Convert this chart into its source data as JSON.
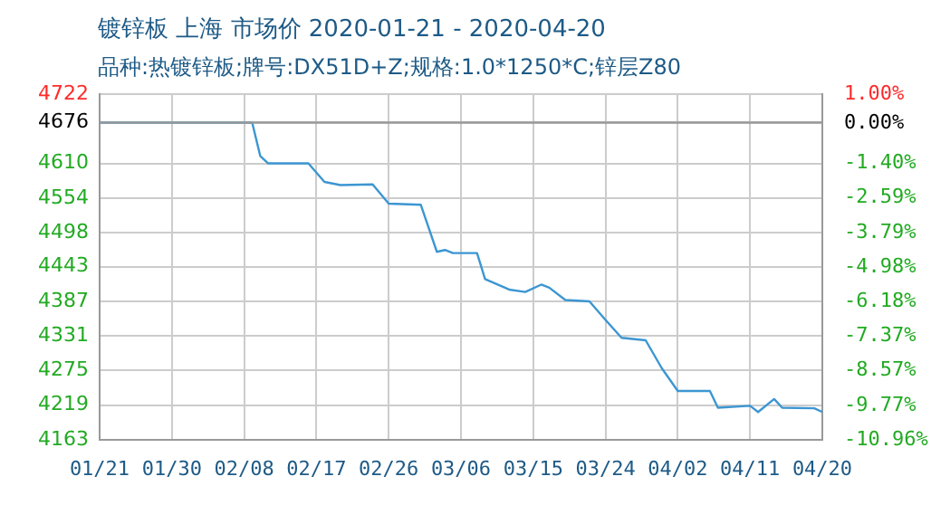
{
  "chart_data": {
    "type": "line",
    "title": "镀锌板 上海 市场价 2020-01-21 - 2020-04-20",
    "subtitle": "品种:热镀锌板;牌号:DX51D+Z;规格:1.0*1250*C;锌层Z80",
    "x": [
      "2020-01-21",
      "2020-02-09",
      "2020-02-10",
      "2020-02-11",
      "2020-02-16",
      "2020-02-18",
      "2020-02-20",
      "2020-02-24",
      "2020-02-26",
      "2020-03-01",
      "2020-03-03",
      "2020-03-04",
      "2020-03-05",
      "2020-03-08",
      "2020-03-09",
      "2020-03-12",
      "2020-03-14",
      "2020-03-16",
      "2020-03-17",
      "2020-03-19",
      "2020-03-22",
      "2020-03-24",
      "2020-03-26",
      "2020-03-29",
      "2020-03-31",
      "2020-04-02",
      "2020-04-06",
      "2020-04-07",
      "2020-04-11",
      "2020-04-12",
      "2020-04-14",
      "2020-04-15",
      "2020-04-19",
      "2020-04-20"
    ],
    "series": [
      {
        "color": "#3c96d2",
        "values": [
          4676,
          4676,
          4622,
          4610,
          4610,
          4580,
          4575,
          4576,
          4545,
          4543,
          4467,
          4470,
          4465,
          4465,
          4423,
          4406,
          4402,
          4414,
          4409,
          4389,
          4387,
          4357,
          4328,
          4324,
          4279,
          4242,
          4242,
          4215,
          4218,
          4208,
          4229,
          4215,
          4214,
          4208
        ]
      }
    ],
    "xlim": [
      "2020-01-21",
      "2020-04-20"
    ],
    "xticks": [
      {
        "value": "2020-01-21",
        "label": "01/21"
      },
      {
        "value": "2020-01-30",
        "label": "01/30"
      },
      {
        "value": "2020-02-08",
        "label": "02/08"
      },
      {
        "value": "2020-02-17",
        "label": "02/17"
      },
      {
        "value": "2020-02-26",
        "label": "02/26"
      },
      {
        "value": "2020-03-06",
        "label": "03/06"
      },
      {
        "value": "2020-03-15",
        "label": "03/15"
      },
      {
        "value": "2020-03-24",
        "label": "03/24"
      },
      {
        "value": "2020-04-02",
        "label": "04/02"
      },
      {
        "value": "2020-04-11",
        "label": "04/11"
      },
      {
        "value": "2020-04-20",
        "label": "04/20"
      }
    ],
    "ylim": [
      4163,
      4722
    ],
    "yticks": [
      4722,
      4676,
      4610,
      4554,
      4498,
      4443,
      4387,
      4331,
      4275,
      4219,
      4163
    ],
    "y2lim": [
      -10.96,
      1.0
    ],
    "y2ticks": [
      {
        "value": 1.0,
        "label": "1.00%"
      },
      {
        "value": 0,
        "label": "0.00%"
      },
      {
        "value": -1.4,
        "label": "-1.40%"
      },
      {
        "value": -2.59,
        "label": "-2.59%"
      },
      {
        "value": -3.79,
        "label": "-3.79%"
      },
      {
        "value": -4.98,
        "label": "-4.98%"
      },
      {
        "value": -6.18,
        "label": "-6.18%"
      },
      {
        "value": -7.37,
        "label": "-7.37%"
      },
      {
        "value": -8.57,
        "label": "-8.57%"
      },
      {
        "value": -9.77,
        "label": "-9.77%"
      },
      {
        "value": -10.96,
        "label": "-10.96%"
      }
    ],
    "ref_lines": [
      {
        "axis": "y",
        "value": 4676,
        "color": "#999999"
      }
    ],
    "grid": true,
    "legend": false,
    "marker": "none",
    "line_style": "solid"
  }
}
